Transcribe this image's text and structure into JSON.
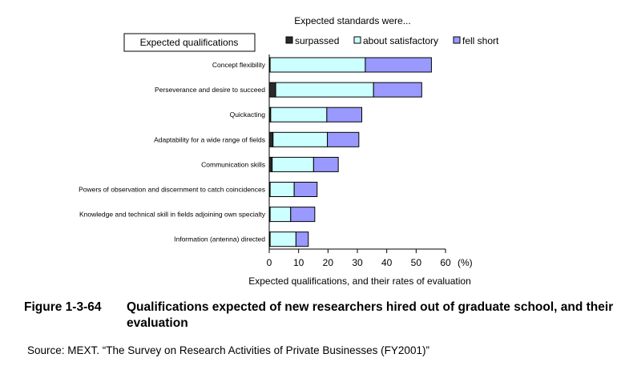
{
  "chart_data": {
    "type": "bar",
    "orientation": "horizontal",
    "stacked": true,
    "legend_title": "Expected standards were...",
    "box_label": "Expected qualifications",
    "categories": [
      "Concept flexibility",
      "Perseverance and desire to succeed",
      "Quickacting",
      "Adaptability for a wide range of fields",
      "Communication skills",
      "Powers of observation and discernment to catch coincidences",
      "Knowledge and technical skill in fields adjoining own specialty",
      "Information (antenna) directed"
    ],
    "series": [
      {
        "name": "surpassed",
        "color": "#2b2b2b",
        "values": [
          0.3,
          2.2,
          0.5,
          1.3,
          1.0,
          0.3,
          0.3,
          0.3
        ]
      },
      {
        "name": "about satisfactory",
        "color": "#ccffff",
        "values": [
          32.4,
          33.3,
          19.1,
          18.5,
          14.1,
          8.2,
          7.0,
          8.8
        ]
      },
      {
        "name": "fell short",
        "color": "#9999ff",
        "values": [
          22.5,
          16.4,
          11.9,
          10.7,
          8.4,
          7.8,
          8.2,
          4.2
        ]
      }
    ],
    "xlim": [
      0,
      60
    ],
    "xticks": [
      0,
      10,
      20,
      30,
      40,
      50,
      60
    ],
    "x_unit": "(%)",
    "xlabel": "Expected qualifications, and their rates of evaluation",
    "grid": false,
    "legend_position": "top"
  },
  "figure": {
    "number": "Figure 1-3-64",
    "title": "Qualifications expected of new researchers hired out of graduate school, and their evaluation"
  },
  "source": "Source: MEXT. “The Survey on Research Activities of Private Businesses (FY2001)”"
}
